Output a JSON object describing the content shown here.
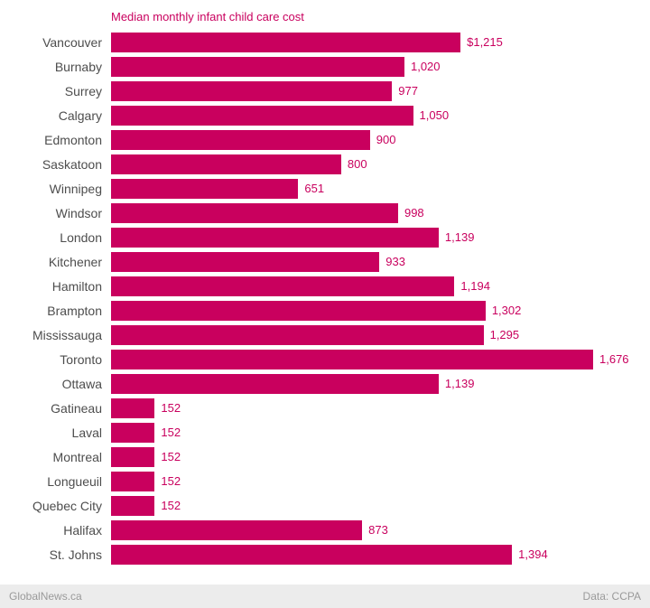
{
  "chart": {
    "title": "Median monthly infant child care cost"
  },
  "chart_data": {
    "type": "bar",
    "orientation": "horizontal",
    "title": "Median monthly infant child care cost",
    "xlabel": "",
    "ylabel": "",
    "xlim": [
      0,
      1676
    ],
    "grid": false,
    "legend": false,
    "bar_color": "#c9005e",
    "categories": [
      "Vancouver",
      "Burnaby",
      "Surrey",
      "Calgary",
      "Edmonton",
      "Saskatoon",
      "Winnipeg",
      "Windsor",
      "London",
      "Kitchener",
      "Hamilton",
      "Brampton",
      "Mississauga",
      "Toronto",
      "Ottawa",
      "Gatineau",
      "Laval",
      "Montreal",
      "Longueuil",
      "Quebec City",
      "Halifax",
      "St. Johns"
    ],
    "values": [
      1215,
      1020,
      977,
      1050,
      900,
      800,
      651,
      998,
      1139,
      933,
      1194,
      1302,
      1295,
      1676,
      1139,
      152,
      152,
      152,
      152,
      152,
      873,
      1394
    ],
    "value_labels": [
      "$1,215",
      "1,020",
      "977",
      "1,050",
      "900",
      "800",
      "651",
      "998",
      "1,139",
      "933",
      "1,194",
      "1,302",
      "1,295",
      "1,676",
      "1,139",
      "152",
      "152",
      "152",
      "152",
      "152",
      "873",
      "1,394"
    ]
  },
  "footer": {
    "source_left": "GlobalNews.ca",
    "source_right": "Data: CCPA"
  }
}
